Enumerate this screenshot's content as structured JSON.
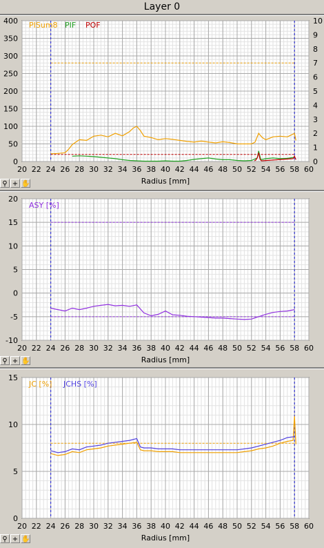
{
  "window_title": "Layer 0",
  "toolbar": {
    "zoom_icon": "zoom-icon",
    "crosshair_icon": "crosshair-icon",
    "pan_icon": "hand-pan-icon"
  },
  "chart_data": [
    {
      "type": "line",
      "xlabel": "Radius [mm]",
      "xlim": [
        20,
        60
      ],
      "xticks": [
        20,
        22,
        24,
        26,
        28,
        30,
        32,
        34,
        36,
        38,
        40,
        42,
        44,
        46,
        48,
        50,
        52,
        54,
        56,
        58,
        60
      ],
      "ylim": [
        0,
        400
      ],
      "yticks": [
        0,
        50,
        100,
        150,
        200,
        250,
        300,
        350,
        400
      ],
      "y2lim": [
        0,
        10
      ],
      "y2ticks": [
        0,
        1,
        2,
        3,
        4,
        5,
        6,
        7,
        8,
        9,
        10
      ],
      "grid": true,
      "vlines": [
        24,
        58
      ],
      "legend": [
        "PISum8",
        "PIF",
        "POF"
      ],
      "series": [
        {
          "name": "PISum8",
          "color": "#f0a000",
          "x": [
            24,
            25,
            26,
            26.5,
            27,
            28,
            29,
            30,
            31,
            32,
            33,
            34,
            35,
            35.5,
            36,
            36.5,
            37,
            38,
            39,
            40,
            41,
            42,
            43,
            44,
            45,
            46,
            47,
            48,
            49,
            50,
            51,
            52,
            52.5,
            53,
            53.5,
            54,
            55,
            56,
            57,
            57.5,
            58,
            58.2
          ],
          "y": [
            22,
            23,
            25,
            35,
            48,
            62,
            60,
            72,
            75,
            70,
            80,
            73,
            85,
            95,
            100,
            88,
            72,
            68,
            62,
            65,
            63,
            60,
            57,
            55,
            58,
            55,
            53,
            56,
            54,
            50,
            50,
            50,
            55,
            80,
            68,
            62,
            70,
            72,
            70,
            75,
            80,
            60
          ]
        },
        {
          "name": "PIF",
          "color": "#20a020",
          "x": [
            27,
            28,
            29,
            30,
            31,
            32,
            33,
            34,
            35,
            36,
            37,
            38,
            39,
            40,
            41,
            42,
            43,
            44,
            45,
            46,
            47,
            48,
            49,
            50,
            51,
            52,
            52.8,
            53,
            53.3,
            54,
            55,
            56,
            57,
            58
          ],
          "y": [
            15,
            16,
            15,
            14,
            12,
            10,
            8,
            5,
            3,
            2,
            1,
            1,
            1,
            2,
            1,
            1,
            3,
            6,
            8,
            10,
            7,
            5,
            5,
            3,
            2,
            3,
            10,
            30,
            5,
            8,
            10,
            8,
            9,
            12
          ]
        },
        {
          "name": "POF",
          "color": "#c00000",
          "x": [
            52.4,
            52.6,
            52.8,
            53,
            53.2,
            53.4,
            57.8,
            58,
            58.2
          ],
          "y": [
            2,
            4,
            10,
            25,
            6,
            2,
            8,
            15,
            5
          ]
        }
      ],
      "reference_lines": [
        {
          "color": "#f0a000",
          "y": 280,
          "x": [
            24,
            58
          ]
        },
        {
          "color": "#c00000",
          "y": 20,
          "x": [
            24,
            58
          ]
        }
      ]
    },
    {
      "type": "line",
      "xlabel": "Radius [mm]",
      "xlim": [
        20,
        60
      ],
      "xticks": [
        20,
        22,
        24,
        26,
        28,
        30,
        32,
        34,
        36,
        38,
        40,
        42,
        44,
        46,
        48,
        50,
        52,
        54,
        56,
        58,
        60
      ],
      "ylim": [
        -10,
        20
      ],
      "yticks": [
        -10,
        -5,
        0,
        5,
        10,
        15,
        20
      ],
      "grid": true,
      "vlines": [
        24,
        58
      ],
      "legend": [
        "ASY [%]"
      ],
      "series": [
        {
          "name": "ASY [%]",
          "color": "#9030e0",
          "x": [
            24,
            25,
            26,
            27,
            28,
            29,
            30,
            31,
            32,
            33,
            34,
            35,
            36,
            37,
            38,
            39,
            40,
            41,
            42,
            43,
            44,
            45,
            46,
            47,
            48,
            49,
            50,
            51,
            52,
            53,
            54,
            55,
            56,
            57,
            58
          ],
          "y": [
            -3.2,
            -3.5,
            -3.8,
            -3.2,
            -3.5,
            -3.2,
            -2.8,
            -2.6,
            -2.4,
            -2.7,
            -2.6,
            -2.8,
            -2.5,
            -4.2,
            -4.8,
            -4.5,
            -3.8,
            -4.6,
            -4.7,
            -4.9,
            -5.0,
            -5.1,
            -5.2,
            -5.3,
            -5.3,
            -5.4,
            -5.5,
            -5.6,
            -5.5,
            -5.0,
            -4.5,
            -4.1,
            -3.9,
            -3.8,
            -3.5
          ]
        }
      ],
      "reference_lines": [
        {
          "color": "#9030e0",
          "y": 15,
          "x": [
            24,
            58
          ]
        },
        {
          "color": "#9030e0",
          "y": -5,
          "x": [
            24,
            58
          ]
        }
      ]
    },
    {
      "type": "line",
      "xlabel": "Radius [mm]",
      "xlim": [
        20,
        60
      ],
      "xticks": [
        20,
        22,
        24,
        26,
        28,
        30,
        32,
        34,
        36,
        38,
        40,
        42,
        44,
        46,
        48,
        50,
        52,
        54,
        56,
        58,
        60
      ],
      "ylim": [
        0,
        15
      ],
      "yticks": [
        0,
        5,
        10,
        15
      ],
      "grid": true,
      "vlines": [
        24,
        58
      ],
      "legend": [
        "JC [%]",
        "JCHS [%]"
      ],
      "series": [
        {
          "name": "JC [%]",
          "color": "#f0a000",
          "x": [
            24,
            25,
            26,
            27,
            28,
            29,
            30,
            31,
            32,
            33,
            34,
            35,
            36,
            36.5,
            37,
            38,
            39,
            40,
            41,
            42,
            43,
            44,
            45,
            46,
            47,
            48,
            49,
            50,
            51,
            52,
            53,
            54,
            55,
            56,
            57,
            57.8,
            58,
            58.2
          ],
          "y": [
            6.9,
            6.7,
            6.8,
            7.1,
            7.0,
            7.3,
            7.4,
            7.5,
            7.7,
            7.8,
            7.9,
            8.0,
            8.1,
            7.3,
            7.2,
            7.2,
            7.1,
            7.1,
            7.1,
            7.0,
            7.0,
            7.0,
            7.0,
            7.0,
            7.0,
            7.0,
            7.0,
            7.0,
            7.1,
            7.2,
            7.4,
            7.5,
            7.7,
            8.0,
            8.2,
            8.3,
            10.9,
            7.9
          ]
        },
        {
          "name": "JCHS [%]",
          "color": "#5040e0",
          "x": [
            24,
            25,
            26,
            27,
            28,
            29,
            30,
            31,
            32,
            33,
            34,
            35,
            36,
            36.5,
            37,
            38,
            39,
            40,
            41,
            42,
            43,
            44,
            45,
            46,
            47,
            48,
            49,
            50,
            51,
            52,
            53,
            54,
            55,
            56,
            57,
            58
          ],
          "y": [
            7.2,
            7.0,
            7.1,
            7.4,
            7.3,
            7.6,
            7.7,
            7.8,
            8.0,
            8.1,
            8.2,
            8.3,
            8.5,
            7.6,
            7.5,
            7.5,
            7.4,
            7.4,
            7.4,
            7.3,
            7.3,
            7.3,
            7.3,
            7.3,
            7.3,
            7.3,
            7.3,
            7.3,
            7.4,
            7.5,
            7.7,
            7.9,
            8.1,
            8.3,
            8.6,
            8.7
          ]
        }
      ],
      "reference_lines": [
        {
          "color": "#f0a000",
          "y": 8.0,
          "x": [
            24,
            58
          ]
        }
      ]
    }
  ]
}
